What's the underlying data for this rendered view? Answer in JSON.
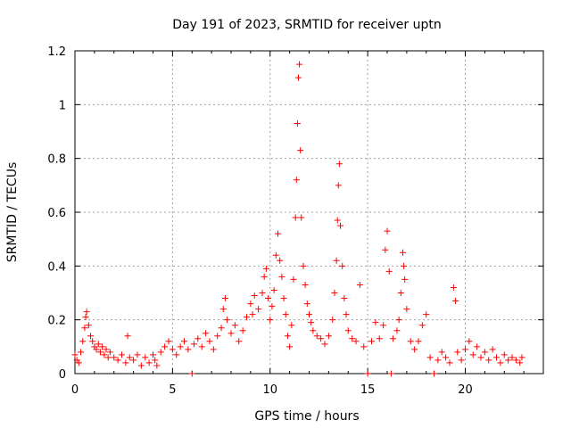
{
  "chart_data": {
    "type": "scatter",
    "title": "Day 191 of 2023, SRMTID for receiver uptn",
    "xlabel": "GPS time / hours",
    "ylabel": "SRMTID / TECUs",
    "xlim": [
      0,
      24
    ],
    "ylim": [
      0,
      1.2
    ],
    "x_ticks": [
      0,
      5,
      10,
      15,
      20
    ],
    "x_tick_labels": [
      "0",
      "5",
      "10",
      "15",
      "20"
    ],
    "y_ticks": [
      0,
      0.2,
      0.4,
      0.6,
      0.8,
      1.0,
      1.2
    ],
    "y_tick_labels": [
      "0",
      "0.2",
      "0.4",
      "0.6",
      "0.8",
      "1",
      "1.2"
    ],
    "grid": true,
    "marker": "+",
    "color": "#ff0000",
    "series": [
      {
        "name": "SRMTID",
        "points": [
          [
            0.0,
            0.07
          ],
          [
            0.1,
            0.05
          ],
          [
            0.2,
            0.04
          ],
          [
            0.3,
            0.08
          ],
          [
            0.4,
            0.12
          ],
          [
            0.5,
            0.17
          ],
          [
            0.55,
            0.21
          ],
          [
            0.6,
            0.23
          ],
          [
            0.7,
            0.18
          ],
          [
            0.8,
            0.14
          ],
          [
            0.9,
            0.12
          ],
          [
            1.0,
            0.1
          ],
          [
            1.1,
            0.09
          ],
          [
            1.2,
            0.11
          ],
          [
            1.3,
            0.08
          ],
          [
            1.4,
            0.1
          ],
          [
            1.5,
            0.07
          ],
          [
            1.6,
            0.09
          ],
          [
            1.7,
            0.06
          ],
          [
            1.8,
            0.08
          ],
          [
            2.0,
            0.06
          ],
          [
            2.2,
            0.05
          ],
          [
            2.4,
            0.07
          ],
          [
            2.6,
            0.04
          ],
          [
            2.7,
            0.14
          ],
          [
            2.8,
            0.06
          ],
          [
            3.0,
            0.05
          ],
          [
            3.2,
            0.07
          ],
          [
            3.4,
            0.03
          ],
          [
            3.6,
            0.06
          ],
          [
            3.8,
            0.04
          ],
          [
            4.0,
            0.07
          ],
          [
            4.1,
            0.05
          ],
          [
            4.2,
            0.03
          ],
          [
            4.4,
            0.08
          ],
          [
            4.6,
            0.1
          ],
          [
            4.8,
            0.12
          ],
          [
            5.0,
            0.09
          ],
          [
            5.2,
            0.07
          ],
          [
            5.4,
            0.1
          ],
          [
            5.6,
            0.12
          ],
          [
            5.8,
            0.09
          ],
          [
            6.0,
            0.0
          ],
          [
            6.1,
            0.11
          ],
          [
            6.3,
            0.13
          ],
          [
            6.5,
            0.1
          ],
          [
            6.7,
            0.15
          ],
          [
            6.9,
            0.12
          ],
          [
            7.1,
            0.09
          ],
          [
            7.3,
            0.14
          ],
          [
            7.5,
            0.17
          ],
          [
            7.6,
            0.24
          ],
          [
            7.7,
            0.28
          ],
          [
            7.8,
            0.2
          ],
          [
            8.0,
            0.15
          ],
          [
            8.2,
            0.18
          ],
          [
            8.4,
            0.12
          ],
          [
            8.6,
            0.16
          ],
          [
            8.8,
            0.21
          ],
          [
            9.0,
            0.26
          ],
          [
            9.1,
            0.22
          ],
          [
            9.2,
            0.29
          ],
          [
            9.4,
            0.24
          ],
          [
            9.6,
            0.3
          ],
          [
            9.7,
            0.36
          ],
          [
            9.8,
            0.39
          ],
          [
            9.9,
            0.28
          ],
          [
            10.0,
            0.2
          ],
          [
            10.1,
            0.25
          ],
          [
            10.2,
            0.31
          ],
          [
            10.3,
            0.44
          ],
          [
            10.4,
            0.52
          ],
          [
            10.5,
            0.42
          ],
          [
            10.6,
            0.36
          ],
          [
            10.7,
            0.28
          ],
          [
            10.8,
            0.22
          ],
          [
            10.9,
            0.14
          ],
          [
            11.0,
            0.1
          ],
          [
            11.1,
            0.18
          ],
          [
            11.2,
            0.35
          ],
          [
            11.3,
            0.58
          ],
          [
            11.35,
            0.72
          ],
          [
            11.4,
            0.93
          ],
          [
            11.45,
            1.1
          ],
          [
            11.5,
            1.15
          ],
          [
            11.55,
            0.83
          ],
          [
            11.6,
            0.58
          ],
          [
            11.7,
            0.4
          ],
          [
            11.8,
            0.33
          ],
          [
            11.9,
            0.26
          ],
          [
            12.0,
            0.22
          ],
          [
            12.1,
            0.19
          ],
          [
            12.2,
            0.16
          ],
          [
            12.4,
            0.14
          ],
          [
            12.6,
            0.13
          ],
          [
            12.8,
            0.11
          ],
          [
            13.0,
            0.14
          ],
          [
            13.2,
            0.2
          ],
          [
            13.3,
            0.3
          ],
          [
            13.4,
            0.42
          ],
          [
            13.45,
            0.57
          ],
          [
            13.5,
            0.7
          ],
          [
            13.55,
            0.78
          ],
          [
            13.6,
            0.55
          ],
          [
            13.7,
            0.4
          ],
          [
            13.8,
            0.28
          ],
          [
            13.9,
            0.22
          ],
          [
            14.0,
            0.16
          ],
          [
            14.2,
            0.13
          ],
          [
            14.4,
            0.12
          ],
          [
            14.6,
            0.33
          ],
          [
            14.8,
            0.1
          ],
          [
            15.0,
            0.0
          ],
          [
            15.2,
            0.12
          ],
          [
            15.4,
            0.19
          ],
          [
            15.6,
            0.13
          ],
          [
            15.8,
            0.18
          ],
          [
            15.9,
            0.46
          ],
          [
            16.0,
            0.53
          ],
          [
            16.1,
            0.38
          ],
          [
            16.2,
            0.0
          ],
          [
            16.3,
            0.13
          ],
          [
            16.5,
            0.16
          ],
          [
            16.6,
            0.2
          ],
          [
            16.7,
            0.3
          ],
          [
            16.8,
            0.45
          ],
          [
            16.85,
            0.4
          ],
          [
            16.9,
            0.35
          ],
          [
            17.0,
            0.24
          ],
          [
            17.2,
            0.12
          ],
          [
            17.4,
            0.09
          ],
          [
            17.6,
            0.12
          ],
          [
            17.8,
            0.18
          ],
          [
            18.0,
            0.22
          ],
          [
            18.2,
            0.06
          ],
          [
            18.4,
            0.0
          ],
          [
            18.6,
            0.05
          ],
          [
            18.8,
            0.08
          ],
          [
            19.0,
            0.06
          ],
          [
            19.2,
            0.04
          ],
          [
            19.4,
            0.32
          ],
          [
            19.5,
            0.27
          ],
          [
            19.6,
            0.08
          ],
          [
            19.8,
            0.05
          ],
          [
            20.0,
            0.09
          ],
          [
            20.2,
            0.12
          ],
          [
            20.4,
            0.07
          ],
          [
            20.6,
            0.1
          ],
          [
            20.8,
            0.06
          ],
          [
            21.0,
            0.08
          ],
          [
            21.2,
            0.05
          ],
          [
            21.4,
            0.09
          ],
          [
            21.6,
            0.06
          ],
          [
            21.8,
            0.04
          ],
          [
            22.0,
            0.07
          ],
          [
            22.2,
            0.05
          ],
          [
            22.4,
            0.06
          ],
          [
            22.6,
            0.05
          ],
          [
            22.8,
            0.04
          ],
          [
            22.9,
            0.06
          ]
        ]
      }
    ]
  }
}
